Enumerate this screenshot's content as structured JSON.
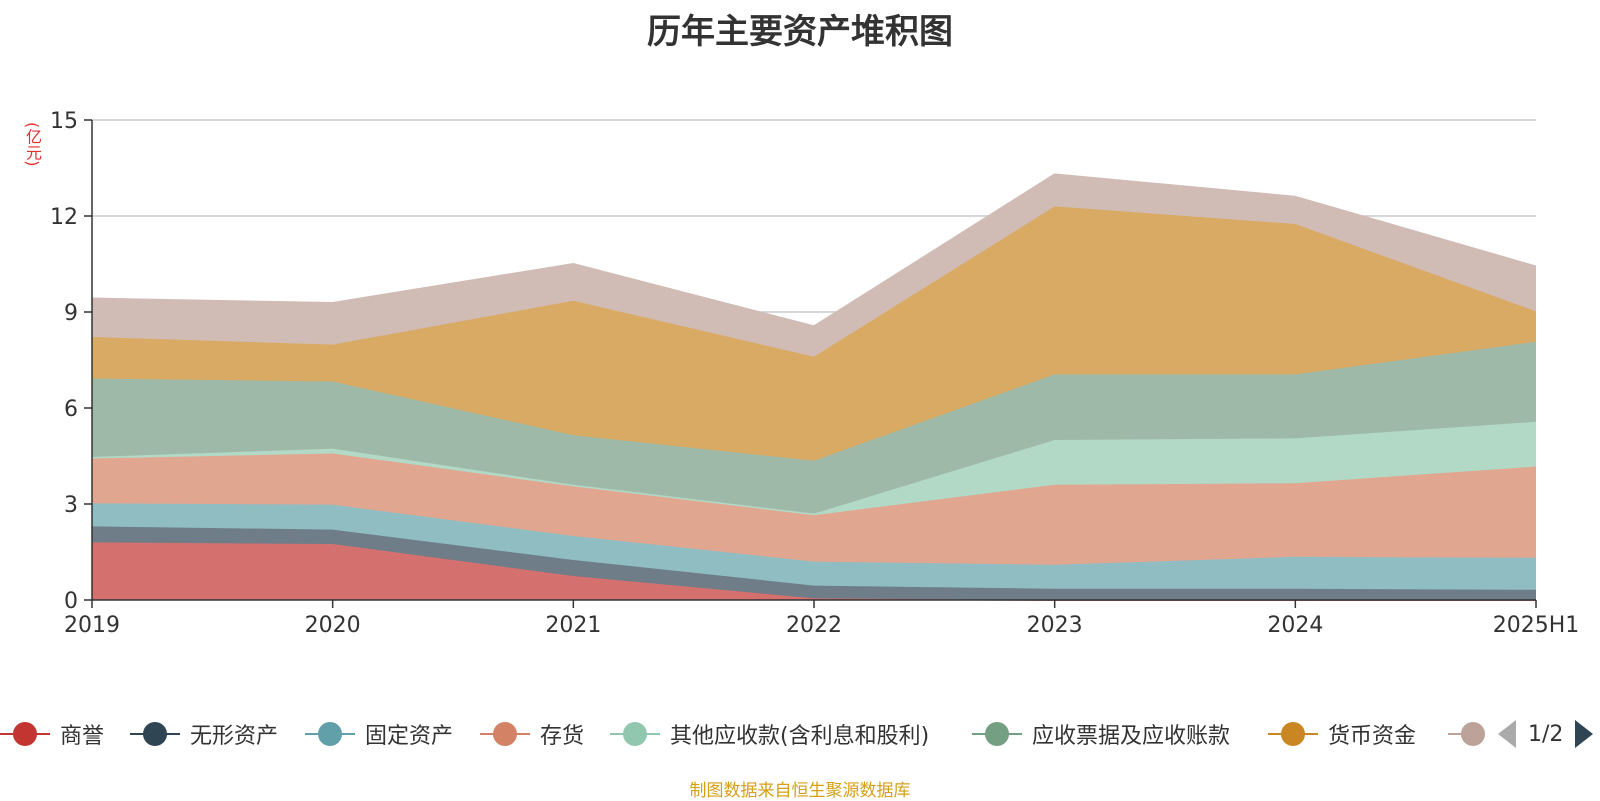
{
  "title": "历年主要资产堆积图",
  "footer": "制图数据来自恒生聚源数据库",
  "pager": {
    "text": "1/2"
  },
  "chart_data": {
    "type": "area",
    "stacked": true,
    "title": "历年主要资产堆积图",
    "ylabel": "(亿元)",
    "xlabel": "",
    "ylim": [
      0,
      15
    ],
    "yticks": [
      0,
      3,
      6,
      9,
      12,
      15
    ],
    "grid": true,
    "legend_placement": "bottom",
    "categories": [
      "2019",
      "2020",
      "2021",
      "2022",
      "2023",
      "2024",
      "2025H1"
    ],
    "series": [
      {
        "name": "商誉",
        "color": "#c23531",
        "fill": "#d4706e",
        "values": [
          1.8,
          1.75,
          0.75,
          0.05,
          0.0,
          0.0,
          0.0
        ]
      },
      {
        "name": "无形资产",
        "color": "#2f4554",
        "fill": "#6e7d88",
        "values": [
          0.5,
          0.45,
          0.5,
          0.4,
          0.35,
          0.35,
          0.32
        ]
      },
      {
        "name": "固定资产",
        "color": "#61a0a8",
        "fill": "#90bdc2",
        "values": [
          0.72,
          0.78,
          0.75,
          0.75,
          0.75,
          1.0,
          1.0
        ]
      },
      {
        "name": "存货",
        "color": "#d48265",
        "fill": "#e1a690",
        "values": [
          1.4,
          1.6,
          1.55,
          1.45,
          2.5,
          2.3,
          2.85
        ]
      },
      {
        "name": "其他应收款(含利息和股利)",
        "color": "#91c7ae",
        "fill": "#b2d8c6",
        "values": [
          0.05,
          0.15,
          0.05,
          0.05,
          1.4,
          1.4,
          1.4
        ]
      },
      {
        "name": "应收票据及应收账款",
        "color": "#749f83",
        "fill": "#9eb9a7",
        "values": [
          2.45,
          2.1,
          1.55,
          1.65,
          2.05,
          2.0,
          2.5
        ]
      },
      {
        "name": "货币资金",
        "color": "#ca8622",
        "fill": "#d9aa64",
        "values": [
          1.3,
          1.15,
          4.2,
          3.25,
          5.25,
          4.7,
          0.95
        ]
      },
      {
        "name": "",
        "color": "#bda29a",
        "fill": "#d0bbb5",
        "values": [
          1.2,
          1.3,
          1.15,
          0.95,
          1.0,
          0.85,
          1.4
        ]
      }
    ]
  }
}
